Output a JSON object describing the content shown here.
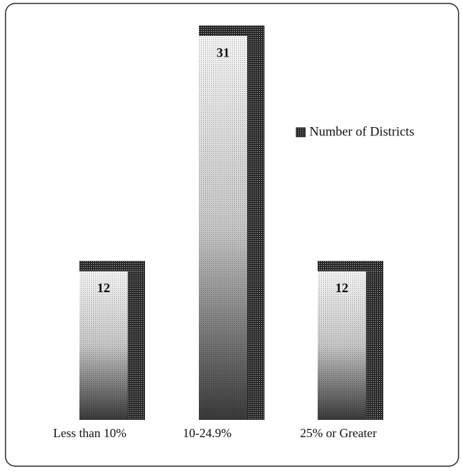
{
  "chart_data": {
    "type": "bar3d",
    "categories": [
      "Less than 10%",
      "10-24.9%",
      "25% or Greater"
    ],
    "series": [
      {
        "name": "Number of Districts",
        "color": "#3a3a3a",
        "values": [
          12,
          31,
          12
        ]
      }
    ],
    "legend": "right"
  }
}
